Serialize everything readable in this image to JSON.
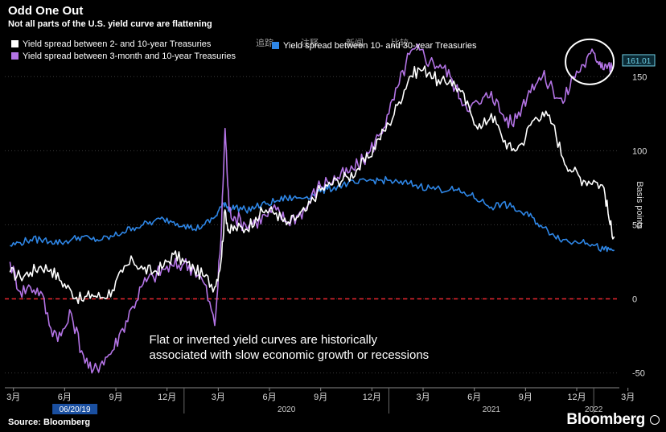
{
  "header": {
    "title": "Odd One Out",
    "subtitle": "Not all parts of the U.S. yield curve are flattening"
  },
  "footer": {
    "source": "Source: Bloomberg",
    "logo": "Bloomberg"
  },
  "overlay_tabs": [
    "追踪",
    "注释",
    "新闻",
    "比较"
  ],
  "chart_data": {
    "type": "line",
    "title": "Odd One Out",
    "subtitle": "Not all parts of the U.S. yield curve are flattening",
    "ylabel": "Basis points",
    "ylim": [
      -60,
      180
    ],
    "yticks": [
      -50,
      0,
      50,
      100,
      150
    ],
    "xlim": [
      2019.125,
      2022.125
    ],
    "xticks": [
      {
        "x": 2019.167,
        "label": "3月"
      },
      {
        "x": 2019.417,
        "label": "6月"
      },
      {
        "x": 2019.667,
        "label": "9月"
      },
      {
        "x": 2019.917,
        "label": "12月"
      },
      {
        "x": 2020.167,
        "label": "3月"
      },
      {
        "x": 2020.417,
        "label": "6月"
      },
      {
        "x": 2020.667,
        "label": "9月"
      },
      {
        "x": 2020.917,
        "label": "12月"
      },
      {
        "x": 2021.167,
        "label": "3月"
      },
      {
        "x": 2021.417,
        "label": "6月"
      },
      {
        "x": 2021.667,
        "label": "9月"
      },
      {
        "x": 2021.917,
        "label": "12月"
      },
      {
        "x": 2022.167,
        "label": "3月"
      }
    ],
    "year_labels": [
      {
        "x": 2020.5,
        "label": "2020"
      },
      {
        "x": 2021.5,
        "label": "2021"
      },
      {
        "x": 2022.0,
        "label": "2022"
      }
    ],
    "date_marker": {
      "x": 2019.467,
      "label": "06/20/19"
    },
    "reference_line": {
      "y": 0,
      "color": "#e8262e"
    },
    "last_value": {
      "value": 161.01,
      "label": "161.01",
      "color": "#6fd0e6"
    },
    "annotation": {
      "lines": [
        "Flat or inverted yield curves are historically",
        "associated with slow economic growth or recessions"
      ],
      "x": 2019.83,
      "y": -30
    },
    "highlight_circle": {
      "x": 2021.98,
      "y": 160
    },
    "legend_position": "top-left",
    "series": [
      {
        "name": "Yield spread between 2- and 10-year Treasuries",
        "color": "#ffffff",
        "x": [
          2019.15,
          2019.2,
          2019.25,
          2019.3,
          2019.35,
          2019.4,
          2019.45,
          2019.5,
          2019.55,
          2019.6,
          2019.65,
          2019.7,
          2019.75,
          2019.8,
          2019.85,
          2019.9,
          2019.95,
          2020.0,
          2020.05,
          2020.1,
          2020.15,
          2020.18,
          2020.2,
          2020.22,
          2020.25,
          2020.3,
          2020.35,
          2020.4,
          2020.45,
          2020.5,
          2020.55,
          2020.6,
          2020.65,
          2020.7,
          2020.75,
          2020.8,
          2020.85,
          2020.9,
          2020.95,
          2021.0,
          2021.05,
          2021.1,
          2021.15,
          2021.2,
          2021.25,
          2021.3,
          2021.35,
          2021.4,
          2021.45,
          2021.5,
          2021.55,
          2021.6,
          2021.65,
          2021.7,
          2021.75,
          2021.8,
          2021.85,
          2021.9,
          2021.95,
          2022.0,
          2022.05,
          2022.08,
          2022.1
        ],
        "y": [
          18,
          15,
          18,
          22,
          20,
          12,
          5,
          -1,
          3,
          1,
          6,
          18,
          26,
          20,
          18,
          22,
          30,
          25,
          20,
          15,
          8,
          25,
          60,
          45,
          48,
          47,
          55,
          60,
          58,
          50,
          55,
          60,
          72,
          76,
          80,
          82,
          88,
          95,
          108,
          118,
          133,
          150,
          155,
          153,
          145,
          148,
          140,
          125,
          115,
          125,
          110,
          100,
          105,
          120,
          126,
          118,
          95,
          86,
          80,
          80,
          75,
          50,
          42
        ]
      },
      {
        "name": "Yield spread between 3-month and 10-year Treasuries",
        "color": "#b474e6",
        "x": [
          2019.15,
          2019.2,
          2019.25,
          2019.3,
          2019.35,
          2019.4,
          2019.45,
          2019.5,
          2019.55,
          2019.6,
          2019.65,
          2019.7,
          2019.75,
          2019.8,
          2019.85,
          2019.9,
          2019.95,
          2020.0,
          2020.05,
          2020.1,
          2020.15,
          2020.18,
          2020.2,
          2020.22,
          2020.25,
          2020.3,
          2020.35,
          2020.4,
          2020.45,
          2020.5,
          2020.55,
          2020.6,
          2020.65,
          2020.7,
          2020.75,
          2020.8,
          2020.85,
          2020.9,
          2020.95,
          2021.0,
          2021.05,
          2021.1,
          2021.15,
          2021.2,
          2021.25,
          2021.3,
          2021.35,
          2021.4,
          2021.45,
          2021.5,
          2021.55,
          2021.6,
          2021.65,
          2021.7,
          2021.75,
          2021.8,
          2021.85,
          2021.9,
          2021.95,
          2022.0,
          2022.03,
          2022.06,
          2022.09
        ],
        "y": [
          25,
          5,
          8,
          5,
          -20,
          -25,
          -10,
          -35,
          -50,
          -42,
          -35,
          -20,
          -5,
          10,
          15,
          20,
          22,
          24,
          20,
          10,
          -18,
          40,
          115,
          60,
          55,
          50,
          52,
          56,
          60,
          52,
          56,
          62,
          75,
          79,
          82,
          85,
          90,
          98,
          110,
          125,
          145,
          165,
          168,
          160,
          158,
          150,
          135,
          130,
          132,
          140,
          125,
          118,
          130,
          145,
          150,
          142,
          132,
          150,
          158,
          166,
          160,
          158,
          155
        ]
      },
      {
        "name": "Yield spread between 10- and 30-year Treasuries",
        "color": "#2e86e6",
        "x": [
          2019.15,
          2019.2,
          2019.25,
          2019.3,
          2019.35,
          2019.4,
          2019.45,
          2019.5,
          2019.55,
          2019.6,
          2019.65,
          2019.7,
          2019.75,
          2019.8,
          2019.85,
          2019.9,
          2019.95,
          2020.0,
          2020.05,
          2020.1,
          2020.15,
          2020.18,
          2020.2,
          2020.22,
          2020.25,
          2020.3,
          2020.35,
          2020.4,
          2020.45,
          2020.5,
          2020.55,
          2020.6,
          2020.65,
          2020.7,
          2020.75,
          2020.8,
          2020.85,
          2020.9,
          2020.95,
          2021.0,
          2021.05,
          2021.1,
          2021.15,
          2021.2,
          2021.25,
          2021.3,
          2021.35,
          2021.4,
          2021.45,
          2021.5,
          2021.55,
          2021.6,
          2021.65,
          2021.7,
          2021.75,
          2021.8,
          2021.85,
          2021.9,
          2021.95,
          2022.0,
          2022.05,
          2022.08,
          2022.1
        ],
        "y": [
          36,
          38,
          40,
          40,
          39,
          38,
          40,
          42,
          40,
          40,
          42,
          45,
          48,
          50,
          52,
          54,
          52,
          50,
          47,
          50,
          55,
          62,
          65,
          60,
          62,
          60,
          62,
          64,
          66,
          68,
          68,
          69,
          72,
          74,
          76,
          78,
          78,
          80,
          80,
          80,
          78,
          78,
          76,
          75,
          74,
          74,
          72,
          70,
          66,
          62,
          64,
          62,
          58,
          55,
          48,
          44,
          40,
          38,
          40,
          36,
          33,
          33,
          33
        ]
      }
    ]
  }
}
